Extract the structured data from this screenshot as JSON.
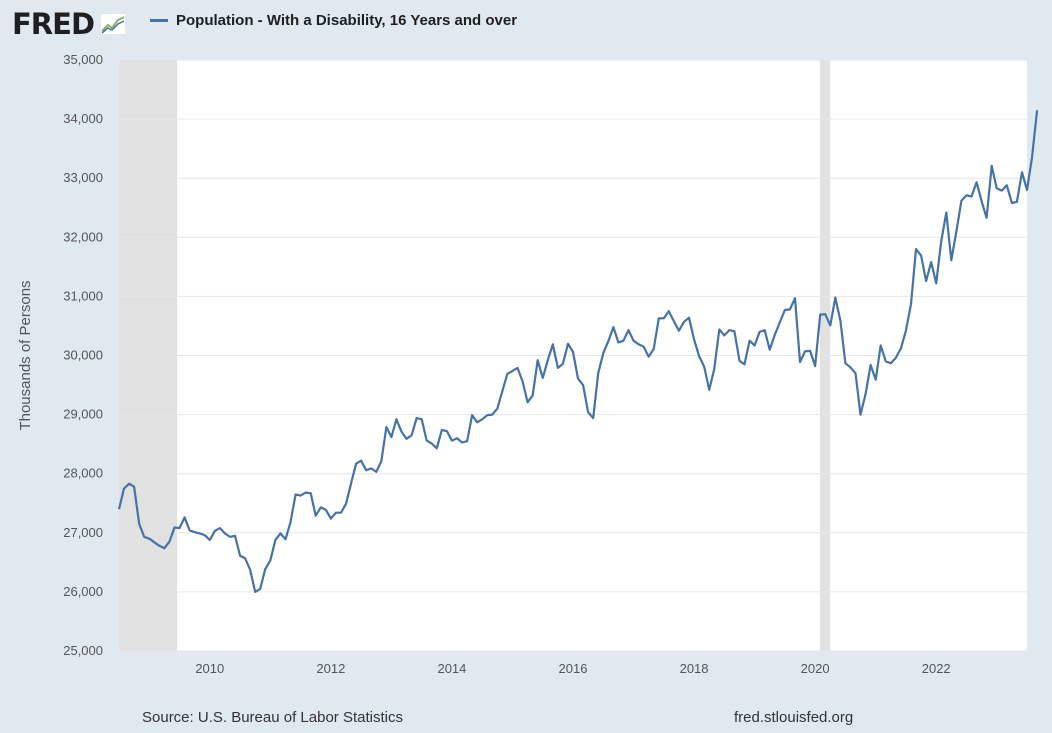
{
  "header": {
    "logo_text": "FRED"
  },
  "colors": {
    "background": "#e1e9f0",
    "plot_bg": "#ffffff",
    "series": "#4572a7",
    "recession": "#e1e1e1",
    "grid": "#e6e6e6"
  },
  "footer": {
    "source": "Source: U.S. Bureau of Labor Statistics",
    "site": "fred.stlouisfed.org"
  },
  "chart_data": {
    "type": "line",
    "title": "",
    "legend": [
      "Population - With a Disability, 16 Years and over"
    ],
    "xlabel": "",
    "ylabel": "Thousands of Persons",
    "xlim": [
      2008.5,
      2023.5
    ],
    "ylim": [
      25000,
      35000
    ],
    "grid": true,
    "x_ticks": [
      2010,
      2012,
      2014,
      2016,
      2018,
      2020,
      2022
    ],
    "x_tick_labels": [
      "2010",
      "2012",
      "2014",
      "2016",
      "2018",
      "2020",
      "2022"
    ],
    "y_ticks": [
      25000,
      26000,
      27000,
      28000,
      29000,
      30000,
      31000,
      32000,
      33000,
      34000,
      35000
    ],
    "y_tick_labels": [
      "25,000",
      "26,000",
      "27,000",
      "28,000",
      "29,000",
      "30,000",
      "31,000",
      "32,000",
      "33,000",
      "34,000",
      "35,000"
    ],
    "recessions": [
      {
        "start": 2008.5,
        "end": 2009.46
      },
      {
        "start": 2020.08,
        "end": 2020.25
      }
    ],
    "series": [
      {
        "name": "Population - With a Disability, 16 Years and over",
        "start_year": 2008.5,
        "step": 0.0833333,
        "values": [
          27400,
          27750,
          27830,
          27780,
          27150,
          26930,
          26900,
          26840,
          26780,
          26740,
          26850,
          27090,
          27080,
          27260,
          27040,
          27010,
          26990,
          26960,
          26880,
          27030,
          27080,
          26990,
          26930,
          26950,
          26610,
          26570,
          26370,
          26000,
          26050,
          26390,
          26530,
          26880,
          26990,
          26890,
          27180,
          27650,
          27630,
          27680,
          27670,
          27290,
          27430,
          27390,
          27240,
          27340,
          27340,
          27490,
          27830,
          28170,
          28220,
          28060,
          28090,
          28030,
          28210,
          28790,
          28620,
          28920,
          28710,
          28590,
          28650,
          28940,
          28920,
          28560,
          28510,
          28430,
          28740,
          28720,
          28560,
          28600,
          28530,
          28550,
          28990,
          28870,
          28920,
          28990,
          29000,
          29100,
          29400,
          29690,
          29740,
          29790,
          29560,
          29210,
          29320,
          29920,
          29620,
          29920,
          30190,
          29790,
          29860,
          30200,
          30060,
          29610,
          29500,
          29040,
          28940,
          29700,
          30040,
          30240,
          30480,
          30220,
          30250,
          30430,
          30250,
          30190,
          30150,
          29980,
          30110,
          30630,
          30630,
          30750,
          30580,
          30420,
          30570,
          30640,
          30270,
          29990,
          29810,
          29420,
          29770,
          30440,
          30340,
          30430,
          30410,
          29910,
          29850,
          30250,
          30170,
          30400,
          30430,
          30100,
          30350,
          30560,
          30770,
          30780,
          30970,
          29890,
          30070,
          30080,
          29820,
          30690,
          30700,
          30510,
          30980,
          30590,
          29870,
          29800,
          29700,
          29000,
          29350,
          29840,
          29590,
          30170,
          29900,
          29870,
          29960,
          30120,
          30420,
          30870,
          31800,
          31690,
          31260,
          31580,
          31220,
          31930,
          32420,
          31610,
          32100,
          32620,
          32710,
          32690,
          32930,
          32610,
          32330,
          33210,
          32830,
          32790,
          32880,
          32580,
          32600,
          33100,
          32800,
          33350,
          34150
        ]
      }
    ]
  }
}
